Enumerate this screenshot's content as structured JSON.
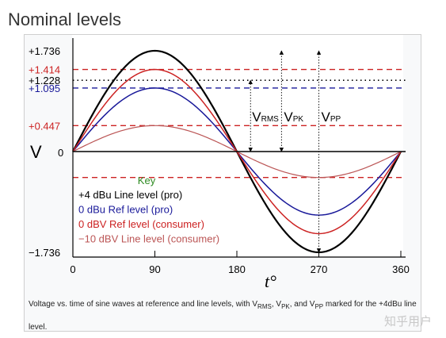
{
  "page": {
    "title": "Nominal levels"
  },
  "caption": {
    "part1": "Voltage vs. time of sine waves at reference and line levels, with V",
    "rms_sub": "RMS",
    "sep1": ", V",
    "pk_sub": "PK",
    "sep2": ", and V",
    "pp_sub": "PP",
    "part2": " marked for the +4dBu line level."
  },
  "watermark": "知乎用户",
  "chart_data": {
    "type": "line",
    "xlabel": "t°",
    "ylabel": "V",
    "xlim": [
      0,
      360
    ],
    "ylim": [
      -1.736,
      1.736
    ],
    "x_ticks": [
      0,
      90,
      180,
      270,
      360
    ],
    "y_tick_zero": "0",
    "legend_title": "Key",
    "legend_placement": "bottom-left",
    "legend_title_color": "#2e8b22",
    "series": [
      {
        "name": "+4 dBu Line level (pro)",
        "amplitude": 1.736,
        "color": "#000000",
        "width": 2.2
      },
      {
        "name": "0 dBu Ref level (pro)",
        "amplitude": 1.095,
        "color": "#1a1a9a",
        "width": 1.5
      },
      {
        "name": "0 dBV Ref level (consumer)",
        "amplitude": 1.414,
        "color": "#cc2222",
        "width": 1.5
      },
      {
        "name": "−10 dBV Line level (consumer)",
        "amplitude": 0.447,
        "color": "#bb5555",
        "width": 1.2
      }
    ],
    "reference_lines": [
      {
        "value": 1.736,
        "label": "+1.736",
        "color": "#000000",
        "style": "none"
      },
      {
        "value": 1.414,
        "label": "+1.414",
        "color": "#cc2222",
        "style": "dashed"
      },
      {
        "value": 1.228,
        "label": "+1.228",
        "color": "#000000",
        "style": "dotted"
      },
      {
        "value": 1.095,
        "label": "+1.095",
        "color": "#1a1a9a",
        "style": "dashed"
      },
      {
        "value": 0.447,
        "label": "+0.447",
        "color": "#cc2222",
        "style": "dashed"
      },
      {
        "value": -0.447,
        "label": "",
        "color": "#cc2222",
        "style": "dashed"
      },
      {
        "value": -1.736,
        "label": "−1.736",
        "color": "#000000",
        "style": "none"
      }
    ],
    "markers": [
      {
        "name": "V",
        "sub": "RMS",
        "x": 195,
        "from": 0,
        "to": 1.228
      },
      {
        "name": "V",
        "sub": "PK",
        "x": 229,
        "from": 0,
        "to": 1.736
      },
      {
        "name": "V",
        "sub": "PP",
        "x": 270,
        "from": -1.736,
        "to": 1.736
      }
    ]
  }
}
